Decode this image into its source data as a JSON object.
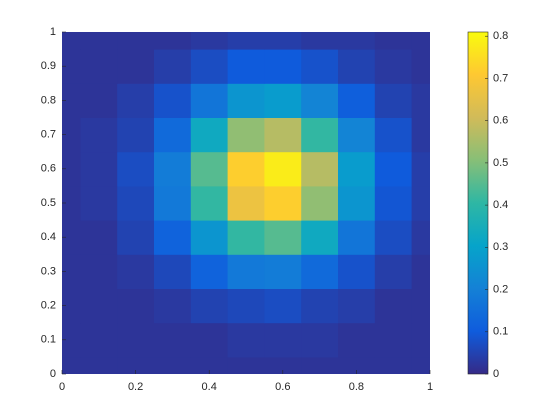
{
  "chart_data": {
    "type": "heatmap",
    "x": [
      0,
      0.1,
      0.2,
      0.3,
      0.4,
      0.5,
      0.6,
      0.7,
      0.8,
      0.9,
      1
    ],
    "y": [
      0,
      0.1,
      0.2,
      0.3,
      0.4,
      0.5,
      0.6,
      0.7,
      0.8,
      0.9,
      1
    ],
    "z": [
      [
        0.02,
        0.02,
        0.02,
        0.02,
        0.02,
        0.02,
        0.02,
        0.02,
        0.02,
        0.02,
        0.02
      ],
      [
        0.02,
        0.02,
        0.02,
        0.02,
        0.02,
        0.03,
        0.03,
        0.03,
        0.02,
        0.02,
        0.02
      ],
      [
        0.02,
        0.02,
        0.02,
        0.03,
        0.05,
        0.06,
        0.07,
        0.05,
        0.04,
        0.02,
        0.02
      ],
      [
        0.02,
        0.02,
        0.03,
        0.06,
        0.12,
        0.18,
        0.19,
        0.14,
        0.08,
        0.04,
        0.02
      ],
      [
        0.02,
        0.02,
        0.05,
        0.12,
        0.26,
        0.41,
        0.45,
        0.33,
        0.17,
        0.07,
        0.03
      ],
      [
        0.02,
        0.03,
        0.06,
        0.18,
        0.41,
        0.67,
        0.72,
        0.52,
        0.26,
        0.09,
        0.04
      ],
      [
        0.02,
        0.03,
        0.07,
        0.19,
        0.45,
        0.72,
        0.78,
        0.57,
        0.28,
        0.1,
        0.04
      ],
      [
        0.02,
        0.03,
        0.05,
        0.14,
        0.33,
        0.52,
        0.57,
        0.41,
        0.21,
        0.08,
        0.03
      ],
      [
        0.02,
        0.02,
        0.04,
        0.08,
        0.17,
        0.26,
        0.28,
        0.21,
        0.11,
        0.05,
        0.03
      ],
      [
        0.02,
        0.02,
        0.02,
        0.04,
        0.07,
        0.1,
        0.1,
        0.08,
        0.05,
        0.03,
        0.02
      ],
      [
        0.02,
        0.02,
        0.02,
        0.02,
        0.03,
        0.04,
        0.04,
        0.03,
        0.03,
        0.02,
        0.02
      ]
    ],
    "xlim": [
      0,
      1
    ],
    "ylim": [
      0,
      1
    ],
    "xticks": [
      0,
      0.2,
      0.4,
      0.6,
      0.8,
      1
    ],
    "yticks": [
      0,
      0.1,
      0.2,
      0.3,
      0.4,
      0.5,
      0.6,
      0.7,
      0.8,
      0.9,
      1
    ],
    "clim": [
      0,
      0.81
    ],
    "cticks": [
      0,
      0.1,
      0.2,
      0.3,
      0.4,
      0.5,
      0.6,
      0.7,
      0.8
    ],
    "colormap": [
      "#352a87",
      "#0f5cdd",
      "#1481d6",
      "#06a4ca",
      "#2eb7a4",
      "#87bf77",
      "#d1bb59",
      "#fec832",
      "#f9fb0e"
    ]
  }
}
